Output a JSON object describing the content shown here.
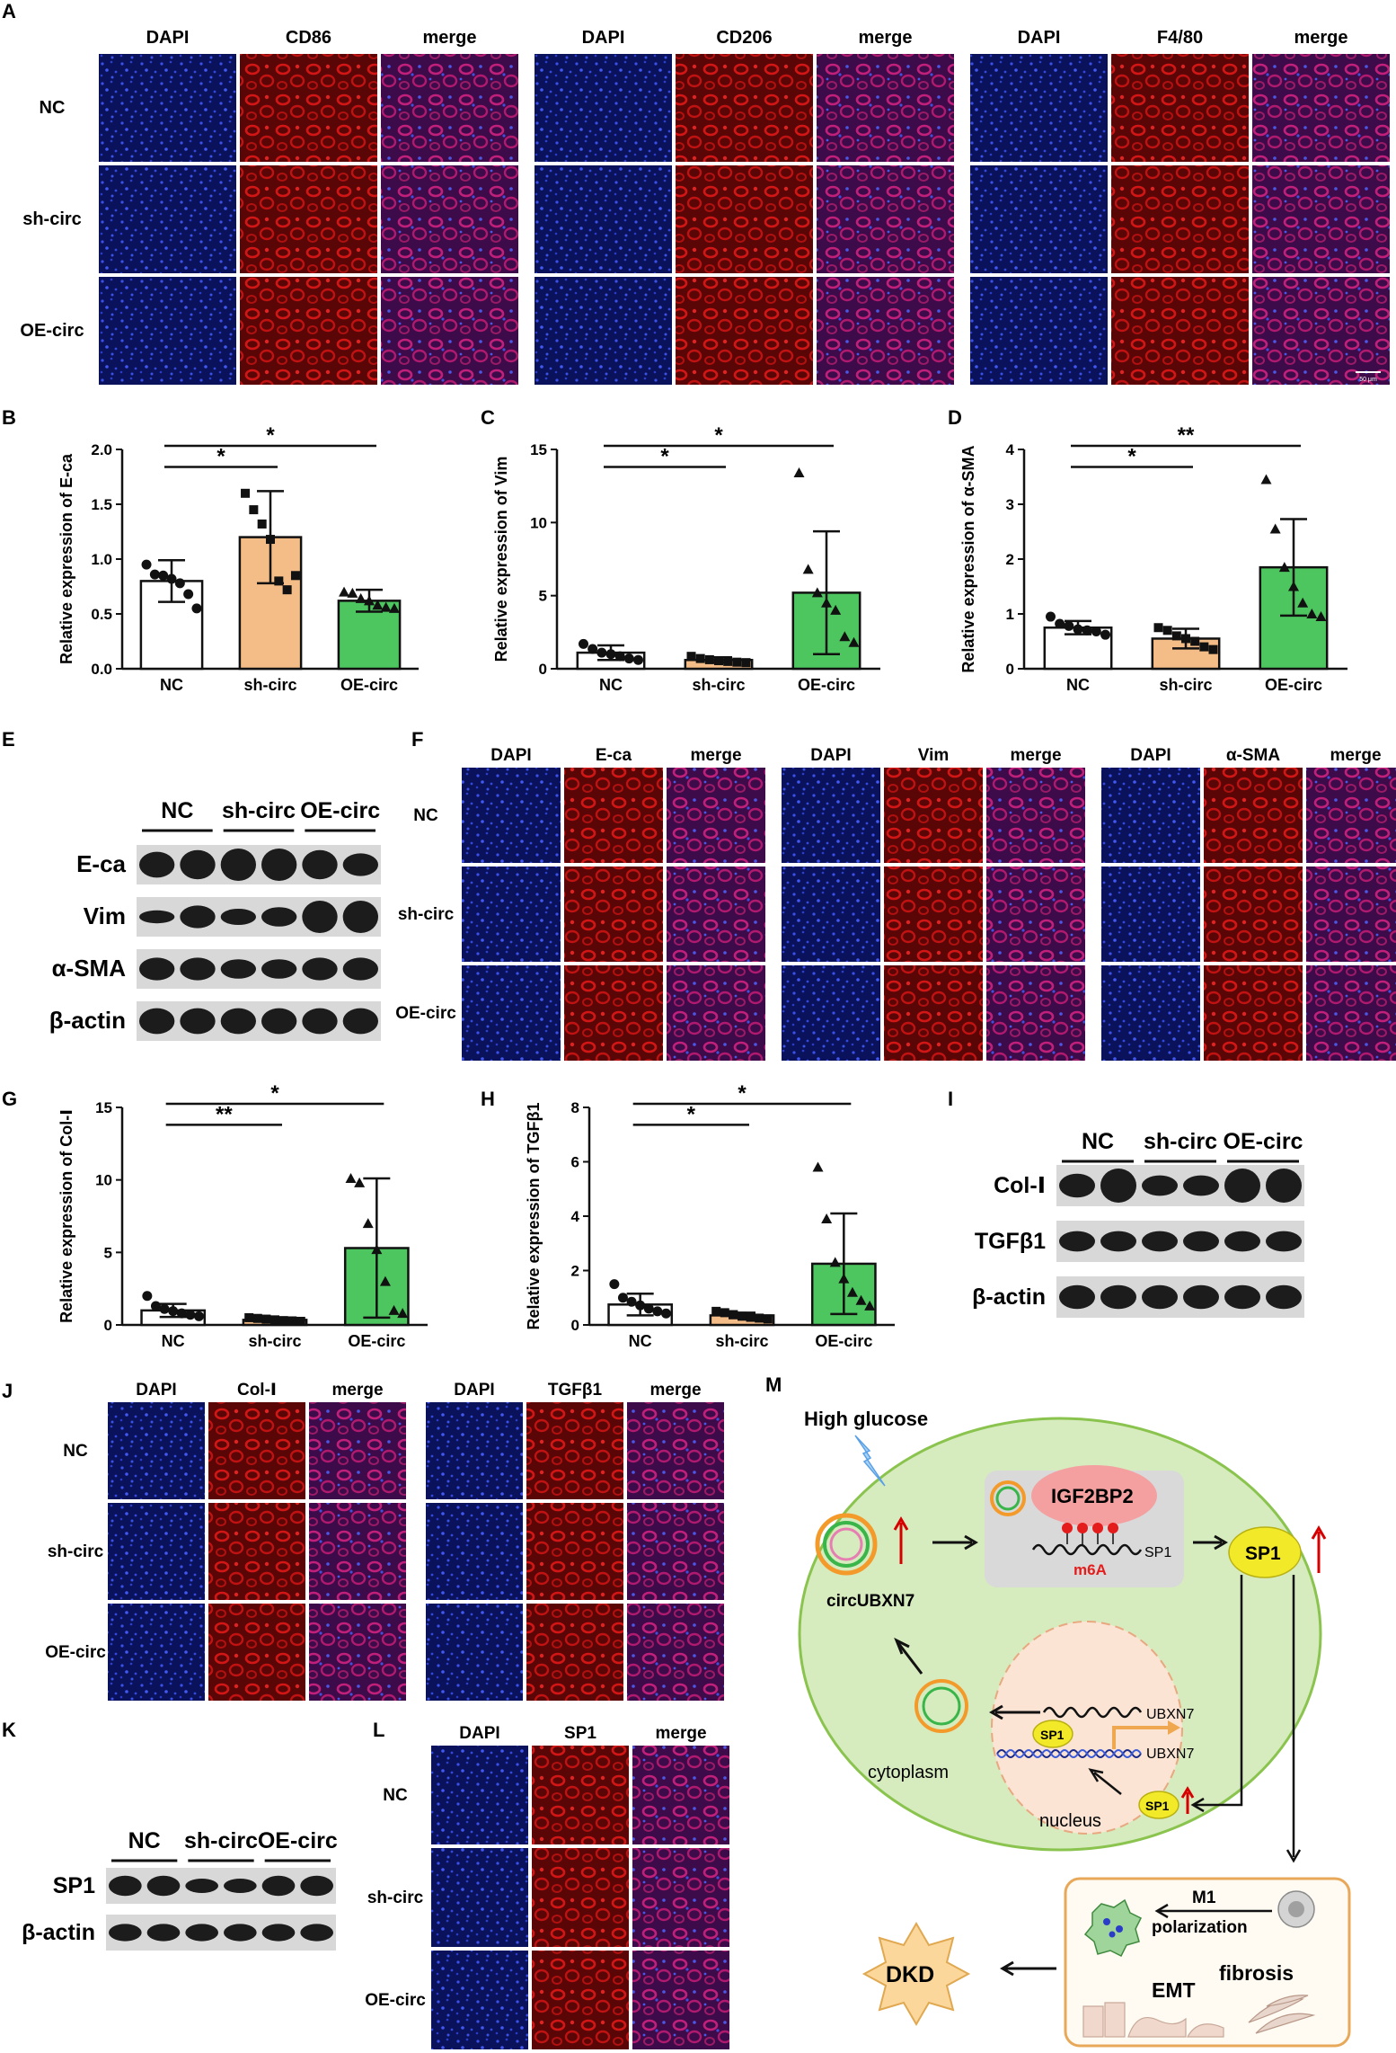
{
  "panels": {
    "A": {
      "letter": "A",
      "columns": [
        "DAPI",
        "CD86",
        "merge",
        "DAPI",
        "CD206",
        "merge",
        "DAPI",
        "F4/80",
        "merge"
      ],
      "rows": [
        "NC",
        "sh-circ",
        "OE-circ"
      ],
      "scale_bar": "50 μm"
    },
    "F": {
      "letter": "F",
      "columns": [
        "DAPI",
        "E-ca",
        "merge",
        "DAPI",
        "Vim",
        "merge",
        "DAPI",
        "α-SMA",
        "merge"
      ],
      "rows": [
        "NC",
        "sh-circ",
        "OE-circ"
      ]
    },
    "J": {
      "letter": "J",
      "columns": [
        "DAPI",
        "Col-Ⅰ",
        "merge",
        "DAPI",
        "TGFβ1",
        "merge"
      ],
      "rows": [
        "NC",
        "sh-circ",
        "OE-circ"
      ]
    },
    "L": {
      "letter": "L",
      "columns": [
        "DAPI",
        "SP1",
        "merge"
      ],
      "rows": [
        "NC",
        "sh-circ",
        "OE-circ"
      ]
    },
    "E": {
      "letter": "E",
      "groups": [
        "NC",
        "sh-circ",
        "OE-circ"
      ],
      "bands": [
        "E-ca",
        "Vim",
        "α-SMA",
        "β-actin"
      ]
    },
    "I": {
      "letter": "I",
      "groups": [
        "NC",
        "sh-circ",
        "OE-circ"
      ],
      "bands": [
        "Col-Ⅰ",
        "TGFβ1",
        "β-actin"
      ]
    },
    "K": {
      "letter": "K",
      "groups": [
        "NC",
        "sh-circ",
        "OE-circ"
      ],
      "bands": [
        "SP1",
        "β-actin"
      ]
    },
    "M": {
      "letter": "M",
      "high_glucose": "High glucose",
      "circ": "circUBXN7",
      "igf": "IGF2BP2",
      "sp1_mrna": "SP1",
      "m6a": "m6A",
      "sp1": "SP1",
      "ubxn7_mrna": "UBXN7",
      "ubxn7_gene": "UBXN7",
      "sp1_small": "SP1",
      "cytoplasm": "cytoplasm",
      "nucleus": "nucleus",
      "m1": "M1",
      "polarization": "polarization",
      "emt": "EMT",
      "fibrosis": "fibrosis",
      "dkd": "DKD"
    }
  },
  "colors": {
    "nc_bar": "#ffffff",
    "sh_bar": "#f4bd87",
    "oe_bar": "#4ec660",
    "dapi": "#0b1468",
    "red": "#b01010",
    "merge": "#6a1670",
    "cell_fill": "#d6ecbf",
    "cell_stroke": "#8ac44e",
    "nucleus_fill": "#fbe4d4",
    "igf_fill": "#f4a0a0",
    "sp1_fill": "#f2ea28",
    "dkd_fill": "#fbd79c",
    "box_stroke": "#e8a85a"
  },
  "chart_data": [
    {
      "panel": "B",
      "type": "bar",
      "categories": [
        "NC",
        "sh-circ",
        "OE-circ"
      ],
      "values": [
        0.8,
        1.2,
        0.62
      ],
      "errors": [
        0.19,
        0.42,
        0.1
      ],
      "points": [
        [
          0.95,
          0.86,
          0.85,
          0.82,
          0.78,
          0.68,
          0.55
        ],
        [
          1.6,
          1.45,
          1.32,
          1.18,
          0.8,
          0.72,
          0.85
        ],
        [
          0.7,
          0.69,
          0.64,
          0.62,
          0.58,
          0.56,
          0.55
        ]
      ],
      "markers": [
        "circle",
        "square",
        "triangle"
      ],
      "ylabel": "Relative expression of E-ca",
      "ylim": [
        0,
        2.0
      ],
      "yticks": [
        "0.0",
        "0.5",
        "1.0",
        "1.5",
        "2.0"
      ],
      "significance": [
        {
          "from": 0,
          "to": 1,
          "label": "*"
        },
        {
          "from": 0,
          "to": 2,
          "label": "*"
        }
      ]
    },
    {
      "panel": "C",
      "type": "bar",
      "categories": [
        "NC",
        "sh-circ",
        "OE-circ"
      ],
      "values": [
        1.1,
        0.6,
        5.2
      ],
      "errors": [
        0.5,
        0.18,
        4.2
      ],
      "points": [
        [
          1.7,
          1.35,
          1.1,
          1.0,
          0.85,
          0.7,
          0.6
        ],
        [
          0.85,
          0.7,
          0.62,
          0.55,
          0.5,
          0.45,
          0.42
        ],
        [
          13.4,
          6.8,
          5.2,
          4.5,
          4.0,
          2.2,
          1.8
        ]
      ],
      "markers": [
        "circle",
        "square",
        "triangle"
      ],
      "ylabel": "Relative expression of Vim",
      "ylim": [
        0,
        15
      ],
      "yticks": [
        "0",
        "5",
        "10",
        "15"
      ],
      "significance": [
        {
          "from": 0,
          "to": 1,
          "label": "*"
        },
        {
          "from": 0,
          "to": 2,
          "label": "*"
        }
      ]
    },
    {
      "panel": "D",
      "type": "bar",
      "categories": [
        "NC",
        "sh-circ",
        "OE-circ"
      ],
      "values": [
        0.75,
        0.55,
        1.85
      ],
      "errors": [
        0.12,
        0.18,
        0.88
      ],
      "points": [
        [
          0.95,
          0.82,
          0.78,
          0.72,
          0.7,
          0.68,
          0.62
        ],
        [
          0.75,
          0.7,
          0.6,
          0.55,
          0.5,
          0.4,
          0.35
        ],
        [
          3.45,
          2.55,
          1.85,
          1.5,
          1.2,
          1.0,
          0.95
        ]
      ],
      "markers": [
        "circle",
        "square",
        "triangle"
      ],
      "ylabel": "Relative expression of α-SMA",
      "ylim": [
        0,
        4
      ],
      "yticks": [
        "0",
        "1",
        "2",
        "3",
        "4"
      ],
      "significance": [
        {
          "from": 0,
          "to": 1,
          "label": "*"
        },
        {
          "from": 0,
          "to": 2,
          "label": "**"
        }
      ]
    },
    {
      "panel": "G",
      "type": "bar",
      "categories": [
        "NC",
        "sh-circ",
        "OE-circ"
      ],
      "values": [
        1.0,
        0.35,
        5.3
      ],
      "errors": [
        0.45,
        0.1,
        4.8
      ],
      "points": [
        [
          2.0,
          1.3,
          1.1,
          0.95,
          0.8,
          0.7,
          0.6
        ],
        [
          0.5,
          0.45,
          0.4,
          0.35,
          0.3,
          0.28,
          0.25
        ],
        [
          10.1,
          9.8,
          7.0,
          5.2,
          3.0,
          1.0,
          0.8
        ]
      ],
      "markers": [
        "circle",
        "square",
        "triangle"
      ],
      "ylabel": "Relative expression of Col-Ⅰ",
      "ylim": [
        0,
        15
      ],
      "yticks": [
        "0",
        "5",
        "10",
        "15"
      ],
      "significance": [
        {
          "from": 0,
          "to": 1,
          "label": "**"
        },
        {
          "from": 0,
          "to": 2,
          "label": "*"
        }
      ]
    },
    {
      "panel": "H",
      "type": "bar",
      "categories": [
        "NC",
        "sh-circ",
        "OE-circ"
      ],
      "values": [
        0.75,
        0.35,
        2.25
      ],
      "errors": [
        0.4,
        0.1,
        1.85
      ],
      "points": [
        [
          1.5,
          1.0,
          0.85,
          0.72,
          0.6,
          0.5,
          0.42
        ],
        [
          0.5,
          0.45,
          0.38,
          0.32,
          0.28,
          0.25,
          0.22
        ],
        [
          5.8,
          3.9,
          2.3,
          1.7,
          1.2,
          0.9,
          0.7
        ]
      ],
      "markers": [
        "circle",
        "square",
        "triangle"
      ],
      "ylabel": "Relative expression of TGFβ1",
      "ylim": [
        0,
        8
      ],
      "yticks": [
        "0",
        "2",
        "4",
        "6",
        "8"
      ],
      "significance": [
        {
          "from": 0,
          "to": 1,
          "label": "*"
        },
        {
          "from": 0,
          "to": 2,
          "label": "*"
        }
      ]
    }
  ]
}
